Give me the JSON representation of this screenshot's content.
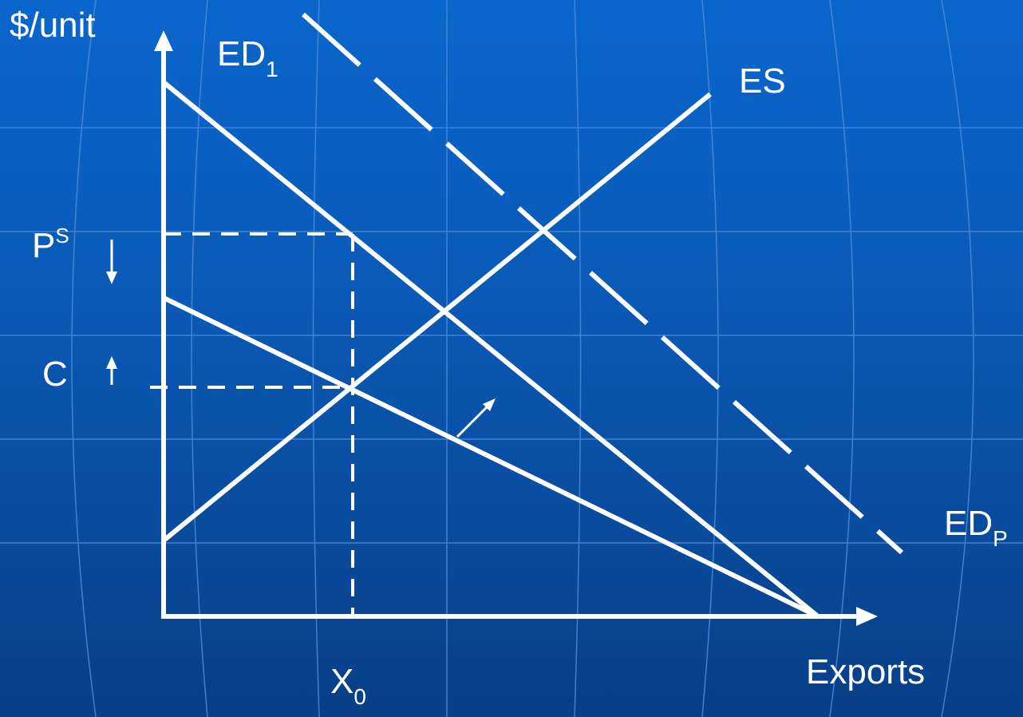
{
  "colors": {
    "background": "#0a5fc2",
    "lines": "#ffffff",
    "grid": "#4f8fdb"
  },
  "labels": {
    "y_axis": "$/unit",
    "x_axis": "Exports",
    "ed1_main": "ED",
    "ed1_sub": "1",
    "es": "ES",
    "edp_main": "ED",
    "edp_sub": "P",
    "ps_main": "P",
    "ps_sup": "S",
    "c": "C",
    "x0_main": "X",
    "x0_sub": "0"
  },
  "icons": {
    "ps_arrow": "arrow-down-icon",
    "c_arrow": "arrow-up-icon",
    "shift_arrow": "arrow-up-right-icon"
  }
}
